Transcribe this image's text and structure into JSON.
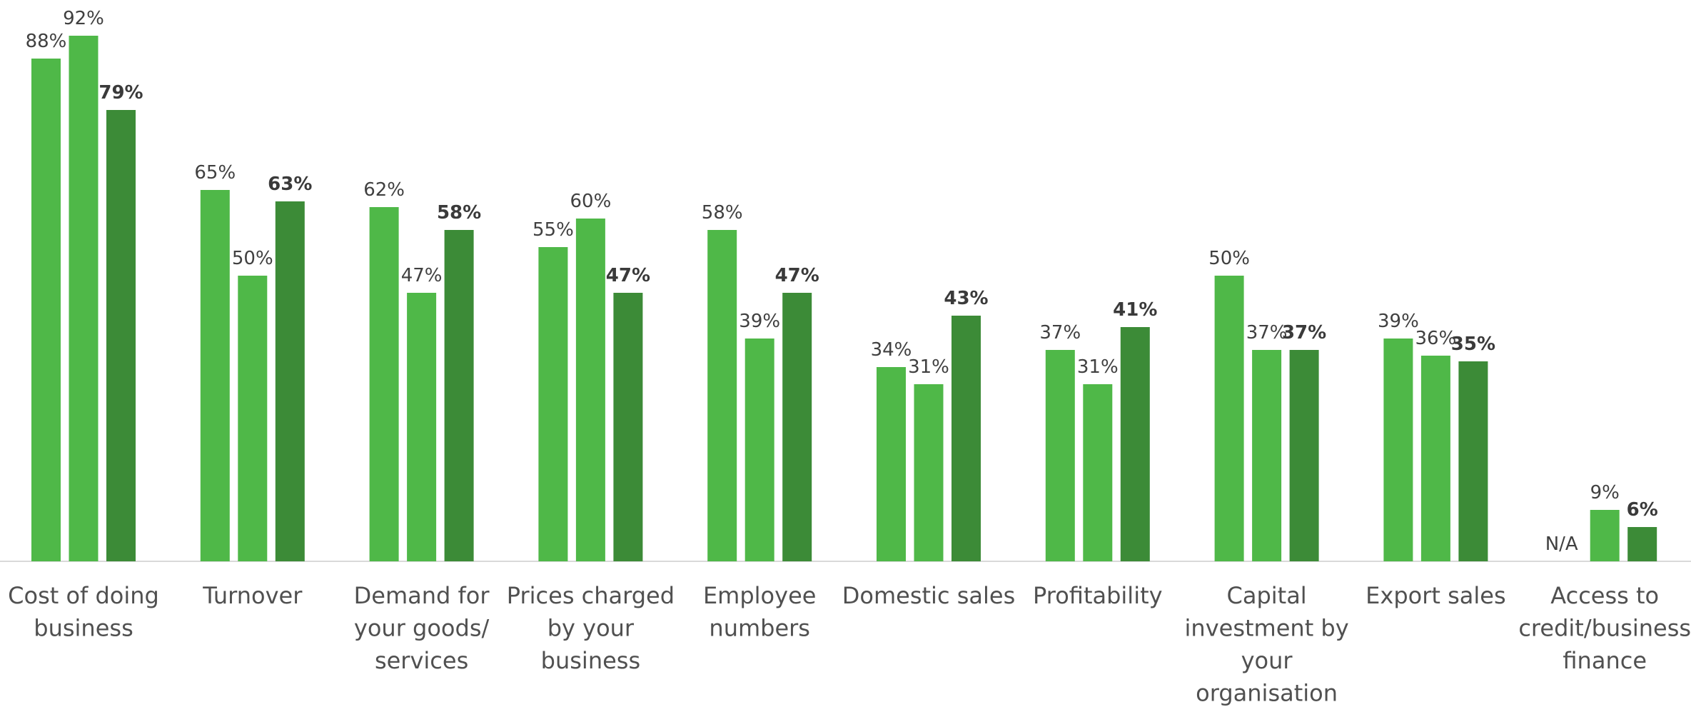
{
  "chart_data": {
    "type": "bar",
    "ylim": [
      0,
      100
    ],
    "grid": false,
    "legend": "none",
    "colors": [
      "#4fb848",
      "#4fb848",
      "#3c8b37"
    ],
    "categories": [
      [
        "Cost of doing",
        "business"
      ],
      [
        "Turnover"
      ],
      [
        "Demand for",
        "your goods/",
        "services"
      ],
      [
        "Prices charged",
        "by your",
        "business"
      ],
      [
        "Employee",
        "numbers"
      ],
      [
        "Domestic sales"
      ],
      [
        "Profitability"
      ],
      [
        "Capital",
        "investment by",
        "your",
        "organisation"
      ],
      [
        "Export sales"
      ],
      [
        "Access to",
        "credit/business",
        "finance"
      ]
    ],
    "series": [
      {
        "values": [
          88,
          65,
          62,
          55,
          58,
          34,
          37,
          50,
          39,
          null
        ],
        "labels": [
          "88%",
          "65%",
          "62%",
          "55%",
          "58%",
          "34%",
          "37%",
          "50%",
          "39%",
          "N/A"
        ]
      },
      {
        "values": [
          92,
          50,
          47,
          60,
          39,
          31,
          31,
          37,
          36,
          9
        ],
        "labels": [
          "92%",
          "50%",
          "47%",
          "60%",
          "39%",
          "31%",
          "31%",
          "37%",
          "36%",
          "9%"
        ]
      },
      {
        "values": [
          79,
          63,
          58,
          47,
          47,
          43,
          41,
          37,
          35,
          6
        ],
        "labels": [
          "79%",
          "63%",
          "58%",
          "47%",
          "47%",
          "43%",
          "41%",
          "37%",
          "35%",
          "6%"
        ]
      }
    ]
  }
}
